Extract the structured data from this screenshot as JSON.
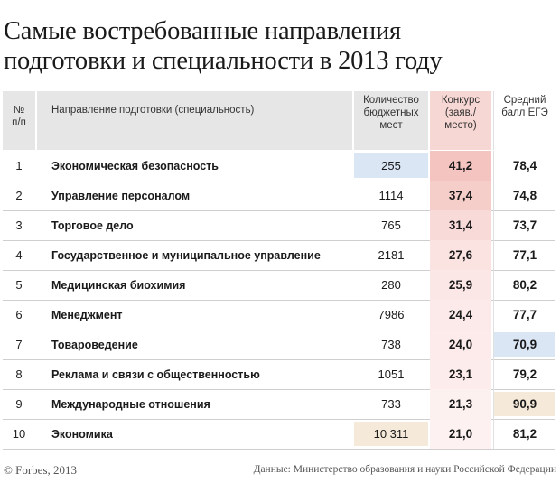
{
  "title": {
    "line1": "Самые востребованные направления",
    "line2": "подготовки и специальности в 2013 году"
  },
  "colors": {
    "header_gray": "#e6e6e6",
    "competition_header": "#f7d7d3",
    "competition_gradient_high": "#f3c4c0",
    "competition_gradient_low": "#fdf2f1",
    "min_highlight_blue": "#dbe6f5",
    "max_highlight_beige": "#f5e9d9"
  },
  "chart_data": {
    "type": "table",
    "columns": [
      "№ п/п",
      "Направление подготовки (специальность)",
      "Количество бюджетных мест",
      "Конкурс (заяв./место)",
      "Средний балл ЕГЭ"
    ],
    "rows": [
      {
        "num": "1",
        "name": "Экономическая безопасность",
        "seats": "255",
        "competition": "41,2",
        "score": "78,4"
      },
      {
        "num": "2",
        "name": "Управление персоналом",
        "seats": "1114",
        "competition": "37,4",
        "score": "74,8"
      },
      {
        "num": "3",
        "name": "Торговое дело",
        "seats": "765",
        "competition": "31,4",
        "score": "73,7"
      },
      {
        "num": "4",
        "name": "Государственное и муниципальное управление",
        "seats": "2181",
        "competition": "27,6",
        "score": "77,1"
      },
      {
        "num": "5",
        "name": "Медицинская биохимия",
        "seats": "280",
        "competition": "25,9",
        "score": "80,2"
      },
      {
        "num": "6",
        "name": "Менеджмент",
        "seats": "7986",
        "competition": "24,4",
        "score": "77,7"
      },
      {
        "num": "7",
        "name": "Товароведение",
        "seats": "738",
        "competition": "24,0",
        "score": "70,9"
      },
      {
        "num": "8",
        "name": "Реклама и связи с общественностью",
        "seats": "1051",
        "competition": "23,1",
        "score": "79,2"
      },
      {
        "num": "9",
        "name": "Международные отношения",
        "seats": "733",
        "competition": "21,3",
        "score": "90,9"
      },
      {
        "num": "10",
        "name": "Экономика",
        "seats": "10 311",
        "competition": "21,0",
        "score": "81,2"
      }
    ],
    "highlights": {
      "seats_min_row": 0,
      "seats_max_row": 9,
      "score_min_row": 6,
      "score_max_row": 8
    }
  },
  "header": {
    "num_line1": "№",
    "num_line2": "п/п",
    "name": "Направление подготовки (специальность)",
    "seats_line1": "Количество",
    "seats_line2": "бюджетных",
    "seats_line3": "мест",
    "comp_line1": "Конкурс",
    "comp_line2": "(заяв./",
    "comp_line3": "место)",
    "score_line1": "Средний",
    "score_line2": "балл ЕГЭ"
  },
  "footer": {
    "left": "© Forbes, 2013",
    "right": "Данные: Министерство образования и науки Российской Федерации"
  }
}
